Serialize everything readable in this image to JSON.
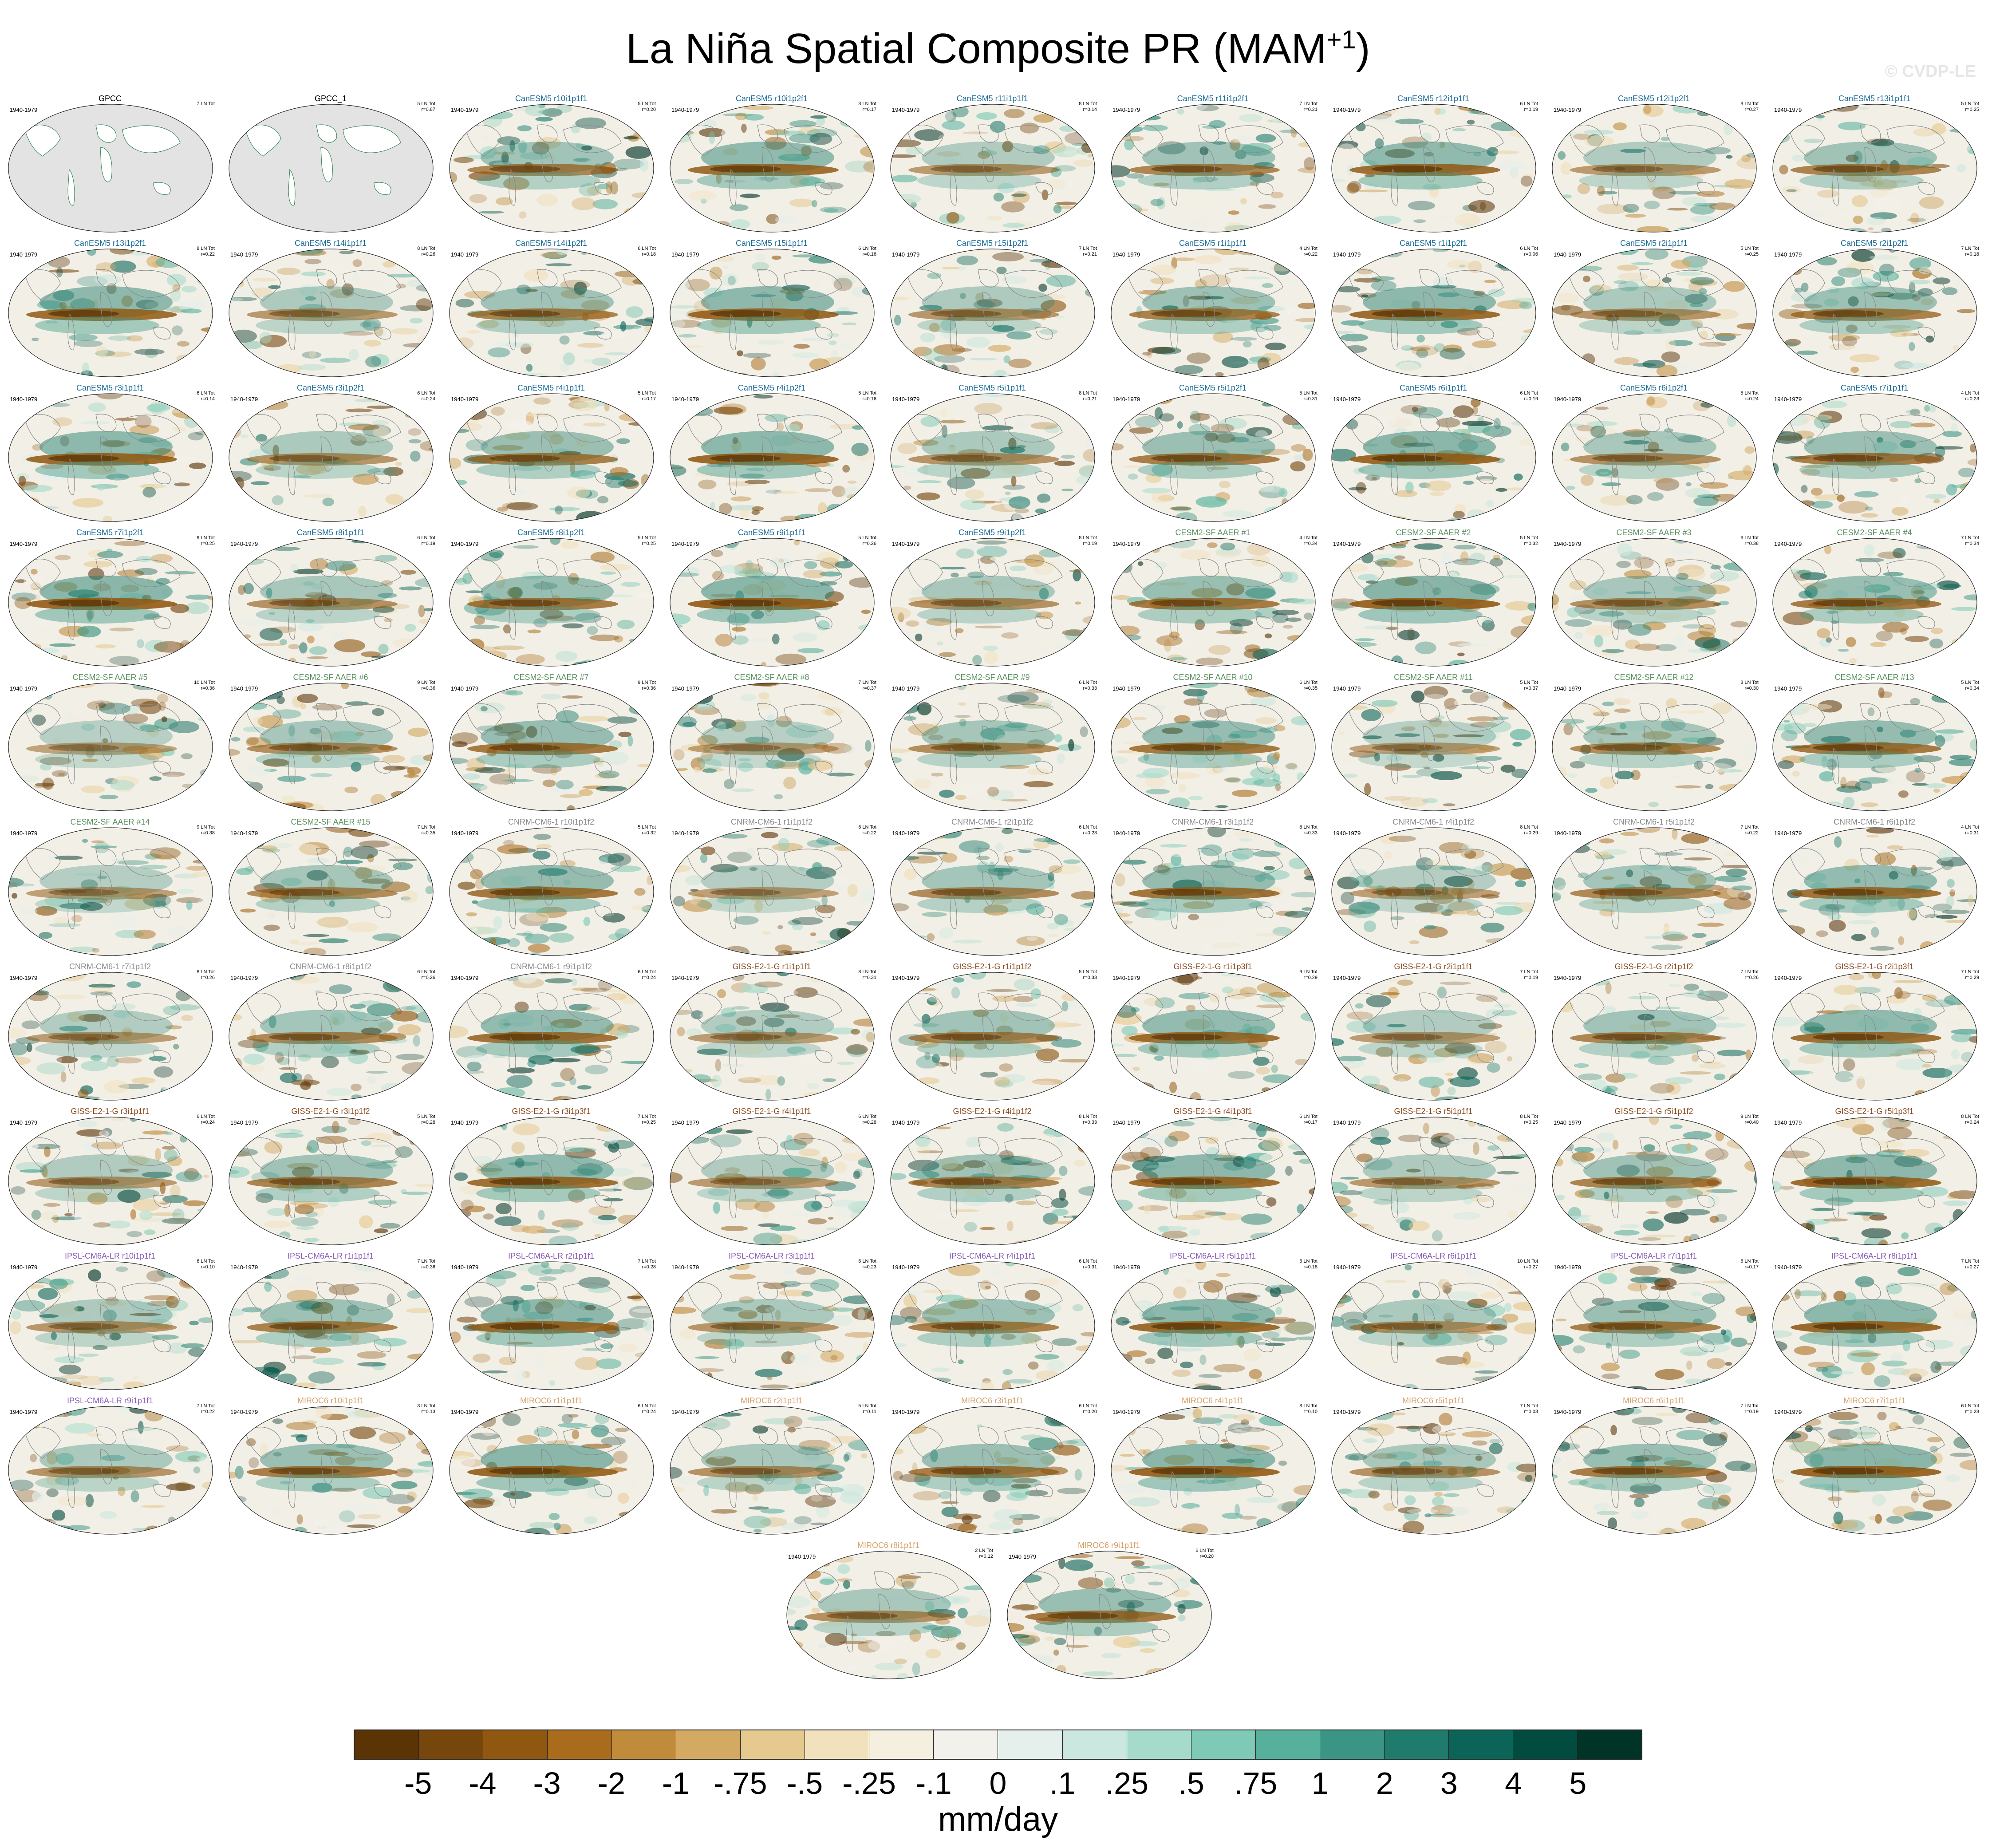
{
  "figure": {
    "title": "La Niña Spatial Composite PR (MAM",
    "title_superscript": "+1",
    "title_close": ")",
    "watermark": "© CVDP-LE",
    "units": "mm/day"
  },
  "colorbar": {
    "labels": [
      "-5",
      "-4",
      "-3",
      "-2",
      "-1",
      "-.75",
      "-.5",
      "-.25",
      "-.1",
      "0",
      ".1",
      ".25",
      ".5",
      ".75",
      "1",
      "2",
      "3",
      "4",
      "5"
    ],
    "colors": [
      "#5b3406",
      "#76460d",
      "#8f5710",
      "#a86c1c",
      "#c08c3c",
      "#d4aa63",
      "#e6c98f",
      "#f1e1bc",
      "#f5efe0",
      "#f3f1ec",
      "#e5efec",
      "#cae8df",
      "#a6dbcc",
      "#7ecab6",
      "#56b09c",
      "#3a9584",
      "#1f7c6c",
      "#0b6457",
      "#024b3f",
      "#013327"
    ]
  },
  "model_colors": {
    "obs": "#000000",
    "CanESM5": "#1a6a96",
    "CESM2-SF AAER": "#5a9060",
    "CNRM-CM6-1": "#8a8a8a",
    "GISS-E2-1-G": "#8a4a20",
    "IPSL-CM6A-LR": "#8a5cb8",
    "MIROC6": "#d4a068"
  },
  "panels": [
    {
      "title": "GPCC",
      "model": "obs",
      "years": "1940-1979",
      "stats_line1": "7 LN Tot",
      "stats_line2": "",
      "sea_fill": false
    },
    {
      "title": "GPCC_1",
      "model": "obs",
      "years": "",
      "stats_line1": "5 LN Tot",
      "stats_line2": "r=0.87",
      "sea_fill": false
    },
    {
      "title": "CanESM5 r10i1p1f1",
      "model": "CanESM5",
      "years": "1940-1979",
      "stats_line1": "5 LN Tot",
      "stats_line2": "r=0.20"
    },
    {
      "title": "CanESM5 r10i1p2f1",
      "model": "CanESM5",
      "years": "1940-1979",
      "stats_line1": "8 LN Tot",
      "stats_line2": "r=0.17"
    },
    {
      "title": "CanESM5 r11i1p1f1",
      "model": "CanESM5",
      "years": "1940-1979",
      "stats_line1": "8 LN Tot",
      "stats_line2": "r=0.14"
    },
    {
      "title": "CanESM5 r11i1p2f1",
      "model": "CanESM5",
      "years": "1940-1979",
      "stats_line1": "7 LN Tot",
      "stats_line2": "r=0.21"
    },
    {
      "title": "CanESM5 r12i1p1f1",
      "model": "CanESM5",
      "years": "1940-1979",
      "stats_line1": "6 LN Tot",
      "stats_line2": "r=0.19"
    },
    {
      "title": "CanESM5 r12i1p2f1",
      "model": "CanESM5",
      "years": "1940-1979",
      "stats_line1": "8 LN Tot",
      "stats_line2": "r=0.27"
    },
    {
      "title": "CanESM5 r13i1p1f1",
      "model": "CanESM5",
      "years": "1940-1979",
      "stats_line1": "5 LN Tot",
      "stats_line2": "r=0.25"
    },
    {
      "title": "CanESM5 r13i1p2f1",
      "model": "CanESM5",
      "years": "1940-1979",
      "stats_line1": "8 LN Tot",
      "stats_line2": "r=0.22"
    },
    {
      "title": "CanESM5 r14i1p1f1",
      "model": "CanESM5",
      "years": "1940-1979",
      "stats_line1": "8 LN Tot",
      "stats_line2": "r=0.26"
    },
    {
      "title": "CanESM5 r14i1p2f1",
      "model": "CanESM5",
      "years": "1940-1979",
      "stats_line1": "6 LN Tot",
      "stats_line2": "r=0.18"
    },
    {
      "title": "CanESM5 r15i1p1f1",
      "model": "CanESM5",
      "years": "1940-1979",
      "stats_line1": "6 LN Tot",
      "stats_line2": "r=0.16"
    },
    {
      "title": "CanESM5 r15i1p2f1",
      "model": "CanESM5",
      "years": "1940-1979",
      "stats_line1": "7 LN Tot",
      "stats_line2": "r=0.21"
    },
    {
      "title": "CanESM5 r1i1p1f1",
      "model": "CanESM5",
      "years": "1940-1979",
      "stats_line1": "4 LN Tot",
      "stats_line2": "r=0.22"
    },
    {
      "title": "CanESM5 r1i1p2f1",
      "model": "CanESM5",
      "years": "1940-1979",
      "stats_line1": "6 LN Tot",
      "stats_line2": "r=0.06"
    },
    {
      "title": "CanESM5 r2i1p1f1",
      "model": "CanESM5",
      "years": "1940-1979",
      "stats_line1": "5 LN Tot",
      "stats_line2": "r=0.25"
    },
    {
      "title": "CanESM5 r2i1p2f1",
      "model": "CanESM5",
      "years": "1940-1979",
      "stats_line1": "7 LN Tot",
      "stats_line2": "r=0.18"
    },
    {
      "title": "CanESM5 r3i1p1f1",
      "model": "CanESM5",
      "years": "1940-1979",
      "stats_line1": "6 LN Tot",
      "stats_line2": "r=0.14"
    },
    {
      "title": "CanESM5 r3i1p2f1",
      "model": "CanESM5",
      "years": "1940-1979",
      "stats_line1": "6 LN Tot",
      "stats_line2": "r=0.24"
    },
    {
      "title": "CanESM5 r4i1p1f1",
      "model": "CanESM5",
      "years": "1940-1979",
      "stats_line1": "5 LN Tot",
      "stats_line2": "r=0.17"
    },
    {
      "title": "CanESM5 r4i1p2f1",
      "model": "CanESM5",
      "years": "1940-1979",
      "stats_line1": "5 LN Tot",
      "stats_line2": "r=0.16"
    },
    {
      "title": "CanESM5 r5i1p1f1",
      "model": "CanESM5",
      "years": "1940-1979",
      "stats_line1": "8 LN Tot",
      "stats_line2": "r=0.21"
    },
    {
      "title": "CanESM5 r5i1p2f1",
      "model": "CanESM5",
      "years": "1940-1979",
      "stats_line1": "5 LN Tot",
      "stats_line2": "r=0.31"
    },
    {
      "title": "CanESM5 r6i1p1f1",
      "model": "CanESM5",
      "years": "1940-1979",
      "stats_line1": "6 LN Tot",
      "stats_line2": "r=0.19"
    },
    {
      "title": "CanESM5 r6i1p2f1",
      "model": "CanESM5",
      "years": "1940-1979",
      "stats_line1": "5 LN Tot",
      "stats_line2": "r=0.24"
    },
    {
      "title": "CanESM5 r7i1p1f1",
      "model": "CanESM5",
      "years": "1940-1979",
      "stats_line1": "4 LN Tot",
      "stats_line2": "r=0.23"
    },
    {
      "title": "CanESM5 r7i1p2f1",
      "model": "CanESM5",
      "years": "1940-1979",
      "stats_line1": "9 LN Tot",
      "stats_line2": "r=0.25"
    },
    {
      "title": "CanESM5 r8i1p1f1",
      "model": "CanESM5",
      "years": "1940-1979",
      "stats_line1": "6 LN Tot",
      "stats_line2": "r=0.19"
    },
    {
      "title": "CanESM5 r8i1p2f1",
      "model": "CanESM5",
      "years": "1940-1979",
      "stats_line1": "5 LN Tot",
      "stats_line2": "r=0.25"
    },
    {
      "title": "CanESM5 r9i1p1f1",
      "model": "CanESM5",
      "years": "1940-1979",
      "stats_line1": "5 LN Tot",
      "stats_line2": "r=0.26"
    },
    {
      "title": "CanESM5 r9i1p2f1",
      "model": "CanESM5",
      "years": "1940-1979",
      "stats_line1": "8 LN Tot",
      "stats_line2": "r=0.19"
    },
    {
      "title": "CESM2-SF AAER #1",
      "model": "CESM2-SF AAER",
      "years": "1940-1979",
      "stats_line1": "4 LN Tot",
      "stats_line2": "r=0.34"
    },
    {
      "title": "CESM2-SF AAER #2",
      "model": "CESM2-SF AAER",
      "years": "1940-1979",
      "stats_line1": "5 LN Tot",
      "stats_line2": "r=0.32"
    },
    {
      "title": "CESM2-SF AAER #3",
      "model": "CESM2-SF AAER",
      "years": "1940-1979",
      "stats_line1": "6 LN Tot",
      "stats_line2": "r=0.38"
    },
    {
      "title": "CESM2-SF AAER #4",
      "model": "CESM2-SF AAER",
      "years": "1940-1979",
      "stats_line1": "7 LN Tot",
      "stats_line2": "r=0.34"
    },
    {
      "title": "CESM2-SF AAER #5",
      "model": "CESM2-SF AAER",
      "years": "1940-1979",
      "stats_line1": "10 LN Tot",
      "stats_line2": "r=0.36"
    },
    {
      "title": "CESM2-SF AAER #6",
      "model": "CESM2-SF AAER",
      "years": "1940-1979",
      "stats_line1": "9 LN Tot",
      "stats_line2": "r=0.36"
    },
    {
      "title": "CESM2-SF AAER #7",
      "model": "CESM2-SF AAER",
      "years": "1940-1979",
      "stats_line1": "9 LN Tot",
      "stats_line2": "r=0.36"
    },
    {
      "title": "CESM2-SF AAER #8",
      "model": "CESM2-SF AAER",
      "years": "1940-1979",
      "stats_line1": "7 LN Tot",
      "stats_line2": "r=0.37"
    },
    {
      "title": "CESM2-SF AAER #9",
      "model": "CESM2-SF AAER",
      "years": "1940-1979",
      "stats_line1": "6 LN Tot",
      "stats_line2": "r=0.33"
    },
    {
      "title": "CESM2-SF AAER #10",
      "model": "CESM2-SF AAER",
      "years": "1940-1979",
      "stats_line1": "6 LN Tot",
      "stats_line2": "r=0.35"
    },
    {
      "title": "CESM2-SF AAER #11",
      "model": "CESM2-SF AAER",
      "years": "1940-1979",
      "stats_line1": "5 LN Tot",
      "stats_line2": "r=0.37"
    },
    {
      "title": "CESM2-SF AAER #12",
      "model": "CESM2-SF AAER",
      "years": "1940-1979",
      "stats_line1": "8 LN Tot",
      "stats_line2": "r=0.30"
    },
    {
      "title": "CESM2-SF AAER #13",
      "model": "CESM2-SF AAER",
      "years": "1940-1979",
      "stats_line1": "5 LN Tot",
      "stats_line2": "r=0.34"
    },
    {
      "title": "CESM2-SF AAER #14",
      "model": "CESM2-SF AAER",
      "years": "1940-1979",
      "stats_line1": "9 LN Tot",
      "stats_line2": "r=0.38"
    },
    {
      "title": "CESM2-SF AAER #15",
      "model": "CESM2-SF AAER",
      "years": "1940-1979",
      "stats_line1": "7 LN Tot",
      "stats_line2": "r=0.35"
    },
    {
      "title": "CNRM-CM6-1 r10i1p1f2",
      "model": "CNRM-CM6-1",
      "years": "1940-1979",
      "stats_line1": "5 LN Tot",
      "stats_line2": "r=0.32"
    },
    {
      "title": "CNRM-CM6-1 r1i1p1f2",
      "model": "CNRM-CM6-1",
      "years": "1940-1979",
      "stats_line1": "6 LN Tot",
      "stats_line2": "r=0.22"
    },
    {
      "title": "CNRM-CM6-1 r2i1p1f2",
      "model": "CNRM-CM6-1",
      "years": "1940-1979",
      "stats_line1": "6 LN Tot",
      "stats_line2": "r=0.23"
    },
    {
      "title": "CNRM-CM6-1 r3i1p1f2",
      "model": "CNRM-CM6-1",
      "years": "1940-1979",
      "stats_line1": "8 LN Tot",
      "stats_line2": "r=0.33"
    },
    {
      "title": "CNRM-CM6-1 r4i1p1f2",
      "model": "CNRM-CM6-1",
      "years": "1940-1979",
      "stats_line1": "8 LN Tot",
      "stats_line2": "r=0.29"
    },
    {
      "title": "CNRM-CM6-1 r5i1p1f2",
      "model": "CNRM-CM6-1",
      "years": "1940-1979",
      "stats_line1": "7 LN Tot",
      "stats_line2": "r=0.22"
    },
    {
      "title": "CNRM-CM6-1 r6i1p1f2",
      "model": "CNRM-CM6-1",
      "years": "1940-1979",
      "stats_line1": "4 LN Tot",
      "stats_line2": "r=0.31"
    },
    {
      "title": "CNRM-CM6-1 r7i1p1f2",
      "model": "CNRM-CM6-1",
      "years": "1940-1979",
      "stats_line1": "8 LN Tot",
      "stats_line2": "r=0.26"
    },
    {
      "title": "CNRM-CM6-1 r8i1p1f2",
      "model": "CNRM-CM6-1",
      "years": "1940-1979",
      "stats_line1": "6 LN Tot",
      "stats_line2": "r=0.26"
    },
    {
      "title": "CNRM-CM6-1 r9i1p1f2",
      "model": "CNRM-CM6-1",
      "years": "1940-1979",
      "stats_line1": "6 LN Tot",
      "stats_line2": "r=0.24"
    },
    {
      "title": "GISS-E2-1-G r1i1p1f1",
      "model": "GISS-E2-1-G",
      "years": "1940-1979",
      "stats_line1": "8 LN Tot",
      "stats_line2": "r=0.31"
    },
    {
      "title": "GISS-E2-1-G r1i1p1f2",
      "model": "GISS-E2-1-G",
      "years": "1940-1979",
      "stats_line1": "5 LN Tot",
      "stats_line2": "r=0.33"
    },
    {
      "title": "GISS-E2-1-G r1i1p3f1",
      "model": "GISS-E2-1-G",
      "years": "1940-1979",
      "stats_line1": "9 LN Tot",
      "stats_line2": "r=0.29"
    },
    {
      "title": "GISS-E2-1-G r2i1p1f1",
      "model": "GISS-E2-1-G",
      "years": "1940-1979",
      "stats_line1": "7 LN Tot",
      "stats_line2": "r=0.19"
    },
    {
      "title": "GISS-E2-1-G r2i1p1f2",
      "model": "GISS-E2-1-G",
      "years": "1940-1979",
      "stats_line1": "7 LN Tot",
      "stats_line2": "r=0.26"
    },
    {
      "title": "GISS-E2-1-G r2i1p3f1",
      "model": "GISS-E2-1-G",
      "years": "1940-1979",
      "stats_line1": "7 LN Tot",
      "stats_line2": "r=0.29"
    },
    {
      "title": "GISS-E2-1-G r3i1p1f1",
      "model": "GISS-E2-1-G",
      "years": "1940-1979",
      "stats_line1": "6 LN Tot",
      "stats_line2": "r=0.24"
    },
    {
      "title": "GISS-E2-1-G r3i1p1f2",
      "model": "GISS-E2-1-G",
      "years": "1940-1979",
      "stats_line1": "5 LN Tot",
      "stats_line2": "r=0.28"
    },
    {
      "title": "GISS-E2-1-G r3i1p3f1",
      "model": "GISS-E2-1-G",
      "years": "1940-1979",
      "stats_line1": "7 LN Tot",
      "stats_line2": "r=0.25"
    },
    {
      "title": "GISS-E2-1-G r4i1p1f1",
      "model": "GISS-E2-1-G",
      "years": "1940-1979",
      "stats_line1": "6 LN Tot",
      "stats_line2": "r=0.28"
    },
    {
      "title": "GISS-E2-1-G r4i1p1f2",
      "model": "GISS-E2-1-G",
      "years": "1940-1979",
      "stats_line1": "8 LN Tot",
      "stats_line2": "r=0.33"
    },
    {
      "title": "GISS-E2-1-G r4i1p3f1",
      "model": "GISS-E2-1-G",
      "years": "1940-1979",
      "stats_line1": "6 LN Tot",
      "stats_line2": "r=0.17"
    },
    {
      "title": "GISS-E2-1-G r5i1p1f1",
      "model": "GISS-E2-1-G",
      "years": "1940-1979",
      "stats_line1": "8 LN Tot",
      "stats_line2": "r=0.25"
    },
    {
      "title": "GISS-E2-1-G r5i1p1f2",
      "model": "GISS-E2-1-G",
      "years": "1940-1979",
      "stats_line1": "9 LN Tot",
      "stats_line2": "r=0.40"
    },
    {
      "title": "GISS-E2-1-G r5i1p3f1",
      "model": "GISS-E2-1-G",
      "years": "1940-1979",
      "stats_line1": "8 LN Tot",
      "stats_line2": "r=0.24"
    },
    {
      "title": "IPSL-CM6A-LR r10i1p1f1",
      "model": "IPSL-CM6A-LR",
      "years": "1940-1979",
      "stats_line1": "6 LN Tot",
      "stats_line2": "r=0.10"
    },
    {
      "title": "IPSL-CM6A-LR r1i1p1f1",
      "model": "IPSL-CM6A-LR",
      "years": "1940-1979",
      "stats_line1": "7 LN Tot",
      "stats_line2": "r=0.36"
    },
    {
      "title": "IPSL-CM6A-LR r2i1p1f1",
      "model": "IPSL-CM6A-LR",
      "years": "1940-1979",
      "stats_line1": "7 LN Tot",
      "stats_line2": "r=0.28"
    },
    {
      "title": "IPSL-CM6A-LR r3i1p1f1",
      "model": "IPSL-CM6A-LR",
      "years": "1940-1979",
      "stats_line1": "6 LN Tot",
      "stats_line2": "r=0.23"
    },
    {
      "title": "IPSL-CM6A-LR r4i1p1f1",
      "model": "IPSL-CM6A-LR",
      "years": "1940-1979",
      "stats_line1": "6 LN Tot",
      "stats_line2": "r=0.31"
    },
    {
      "title": "IPSL-CM6A-LR r5i1p1f1",
      "model": "IPSL-CM6A-LR",
      "years": "1940-1979",
      "stats_line1": "6 LN Tot",
      "stats_line2": "r=0.18"
    },
    {
      "title": "IPSL-CM6A-LR r6i1p1f1",
      "model": "IPSL-CM6A-LR",
      "years": "1940-1979",
      "stats_line1": "10 LN Tot",
      "stats_line2": "r=0.27"
    },
    {
      "title": "IPSL-CM6A-LR r7i1p1f1",
      "model": "IPSL-CM6A-LR",
      "years": "1940-1979",
      "stats_line1": "6 LN Tot",
      "stats_line2": "r=0.17"
    },
    {
      "title": "IPSL-CM6A-LR r8i1p1f1",
      "model": "IPSL-CM6A-LR",
      "years": "1940-1979",
      "stats_line1": "7 LN Tot",
      "stats_line2": "r=0.27"
    },
    {
      "title": "IPSL-CM6A-LR r9i1p1f1",
      "model": "IPSL-CM6A-LR",
      "years": "1940-1979",
      "stats_line1": "7 LN Tot",
      "stats_line2": "r=0.22"
    },
    {
      "title": "MIROC6 r10i1p1f1",
      "model": "MIROC6",
      "years": "1940-1979",
      "stats_line1": "3 LN Tot",
      "stats_line2": "r=0.13"
    },
    {
      "title": "MIROC6 r1i1p1f1",
      "model": "MIROC6",
      "years": "1940-1979",
      "stats_line1": "6 LN Tot",
      "stats_line2": "r=0.24"
    },
    {
      "title": "MIROC6 r2i1p1f1",
      "model": "MIROC6",
      "years": "1940-1979",
      "stats_line1": "5 LN Tot",
      "stats_line2": "r=0.11"
    },
    {
      "title": "MIROC6 r3i1p1f1",
      "model": "MIROC6",
      "years": "1940-1979",
      "stats_line1": "6 LN Tot",
      "stats_line2": "r=0.20"
    },
    {
      "title": "MIROC6 r4i1p1f1",
      "model": "MIROC6",
      "years": "1940-1979",
      "stats_line1": "8 LN Tot",
      "stats_line2": "r=0.10"
    },
    {
      "title": "MIROC6 r5i1p1f1",
      "model": "MIROC6",
      "years": "1940-1979",
      "stats_line1": "7 LN Tot",
      "stats_line2": "r=0.03"
    },
    {
      "title": "MIROC6 r6i1p1f1",
      "model": "MIROC6",
      "years": "1940-1979",
      "stats_line1": "7 LN Tot",
      "stats_line2": "r=0.19"
    },
    {
      "title": "MIROC6 r7i1p1f1",
      "model": "MIROC6",
      "years": "1940-1979",
      "stats_line1": "6 LN Tot",
      "stats_line2": "r=0.28"
    },
    {
      "title": "MIROC6 r8i1p1f1",
      "model": "MIROC6",
      "years": "1940-1979",
      "stats_line1": "2 LN Tot",
      "stats_line2": "r=0.12"
    },
    {
      "title": "MIROC6 r9i1p1f1",
      "model": "MIROC6",
      "years": "1940-1979",
      "stats_line1": "6 LN Tot",
      "stats_line2": "r=0.20"
    }
  ]
}
